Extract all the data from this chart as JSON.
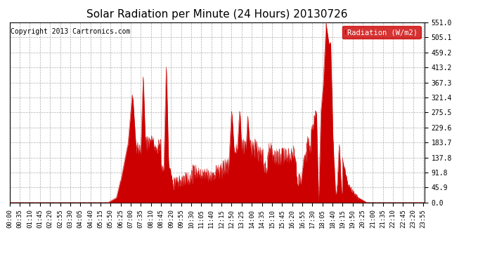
{
  "title": "Solar Radiation per Minute (24 Hours) 20130726",
  "ylabel": "Radiation (W/m2)",
  "copyright": "Copyright 2013 Cartronics.com",
  "bg_color": "#ffffff",
  "plot_bg_color": "#ffffff",
  "fill_color": "#cc0000",
  "dashed_line_color": "#cc0000",
  "grid_color": "#999999",
  "ylim": [
    0.0,
    551.0
  ],
  "yticks": [
    0.0,
    45.9,
    91.8,
    137.8,
    183.7,
    229.6,
    275.5,
    321.4,
    367.3,
    413.2,
    459.2,
    505.1,
    551.0
  ],
  "ytick_labels": [
    "0.0",
    "45.9",
    "91.8",
    "137.8",
    "183.7",
    "229.6",
    "275.5",
    "321.4",
    "367.3",
    "413.2",
    "459.2",
    "505.1",
    "551.0"
  ],
  "xtick_step_minutes": 35
}
